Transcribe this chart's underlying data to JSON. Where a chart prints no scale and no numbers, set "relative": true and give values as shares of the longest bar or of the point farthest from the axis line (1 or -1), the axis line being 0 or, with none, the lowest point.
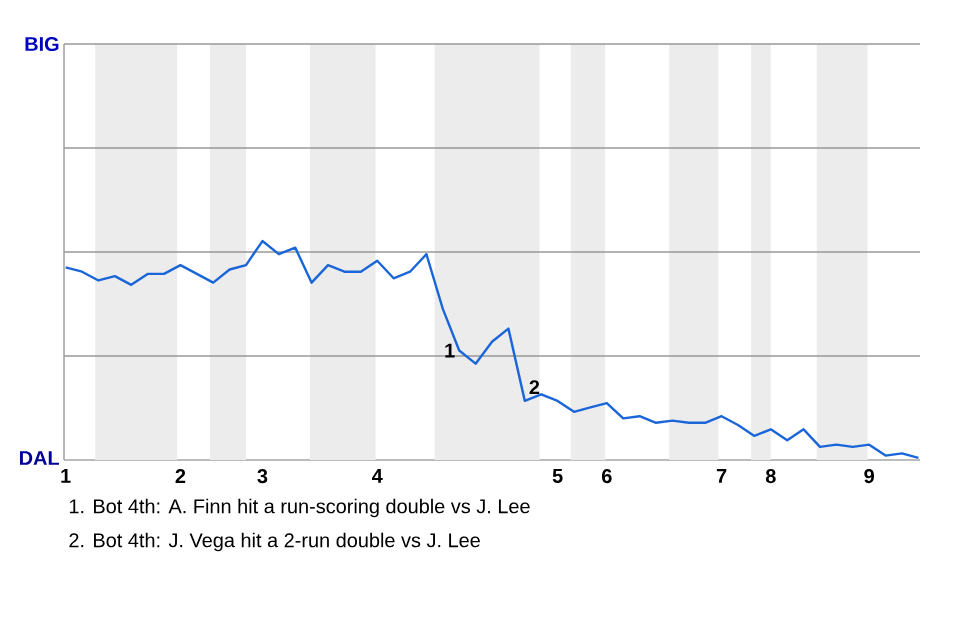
{
  "chart_data": {
    "type": "line",
    "relative": true,
    "categories": [
      "1",
      null,
      null,
      null,
      null,
      null,
      null,
      "2",
      null,
      null,
      null,
      null,
      "3",
      null,
      null,
      null,
      null,
      null,
      null,
      "4",
      null,
      null,
      null,
      null,
      null,
      null,
      null,
      null,
      null,
      null,
      "5",
      null,
      null,
      "6",
      null,
      null,
      null,
      null,
      null,
      null,
      "7",
      null,
      null,
      "8",
      null,
      null,
      null,
      null,
      null,
      "9",
      null,
      null,
      null
    ],
    "series": [
      {
        "color": "#1a66d9",
        "values": [
          0.88,
          0.86,
          0.82,
          0.84,
          0.8,
          0.85,
          0.85,
          0.89,
          0.85,
          0.81,
          0.87,
          0.89,
          1,
          0.94,
          0.97,
          0.81,
          0.89,
          0.86,
          0.86,
          0.91,
          0.83,
          0.86,
          0.94,
          0.69,
          0.5,
          0.44,
          0.54,
          0.6,
          0.27,
          0.3,
          0.27,
          0.22,
          0.24,
          0.26,
          0.19,
          0.2,
          0.17,
          0.18,
          0.17,
          0.17,
          0.2,
          0.16,
          0.11,
          0.14,
          0.09,
          0.14,
          0.06,
          0.07,
          0.06,
          0.07,
          0.02,
          0.03,
          0.01
        ]
      }
    ],
    "ref_lines": [
      {
        "axis": "y",
        "value": 0.475,
        "color": "#999999"
      },
      {
        "axis": "y",
        "value": 0.95,
        "color": "#999999"
      },
      {
        "axis": "y",
        "value": 1.425,
        "color": "#999999"
      },
      {
        "axis": "y",
        "value": 1.9,
        "color": "#999999"
      }
    ],
    "marker": "none",
    "line_style": "solid",
    "annotations": [
      "BIG",
      "DAL",
      "1",
      "2",
      "1. Bot 4th: A. Finn hit a run-scoring double vs J. Lee",
      "2. Bot 4th: J. Vega hit a 2-run double vs J. Lee"
    ]
  }
}
